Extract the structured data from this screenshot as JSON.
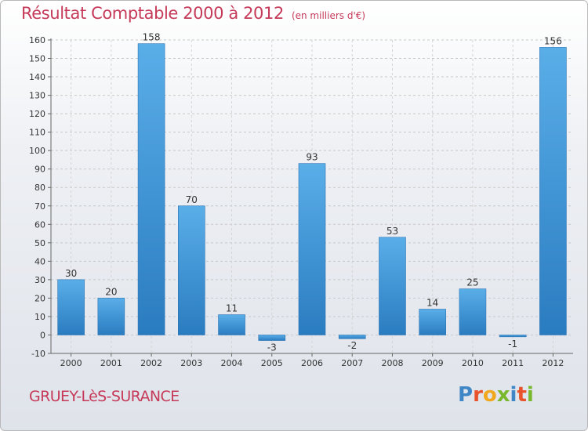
{
  "chart_data": {
    "type": "bar",
    "title": "Résultat Comptable 2000 à 2012",
    "subtitle": "(en milliers d'€)",
    "xlabel": "",
    "ylabel": "",
    "categories": [
      "2000",
      "2001",
      "2002",
      "2003",
      "2004",
      "2005",
      "2006",
      "2007",
      "2008",
      "2009",
      "2010",
      "2011",
      "2012"
    ],
    "values": [
      30,
      20,
      158,
      70,
      11,
      -3,
      93,
      -2,
      53,
      14,
      25,
      -1,
      156
    ],
    "data_labels": [
      "30",
      "20",
      "158",
      "70",
      "11",
      "-3",
      "93",
      "-2",
      "53",
      "14",
      "25",
      "-1",
      "156"
    ],
    "ylim": [
      -10,
      160
    ],
    "yticks": [
      -10,
      0,
      10,
      20,
      30,
      40,
      50,
      60,
      70,
      80,
      90,
      100,
      110,
      120,
      130,
      140,
      150,
      160
    ],
    "grid": true,
    "bar_color": "#3a8fd3"
  },
  "footer": {
    "city": "GRUEY-LèS-SURANCE",
    "logo_text": "Proxiti",
    "logo_colors": [
      "#3f86c6",
      "#e8532b",
      "#f2a81d",
      "#79b82d",
      "#3f86c6",
      "#e8532b",
      "#79b82d"
    ]
  }
}
